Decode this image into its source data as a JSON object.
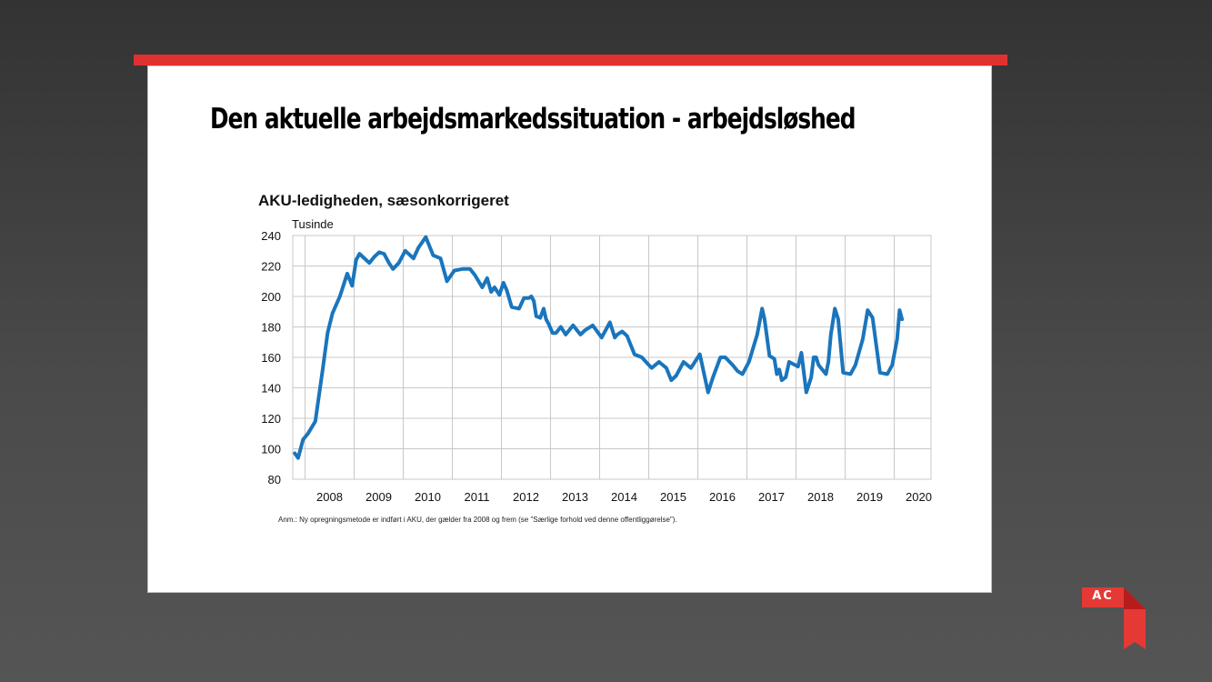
{
  "slide": {
    "title": "Den aktuelle arbejdsmarkedssituation - arbejdsløshed",
    "accent_color": "#e03131"
  },
  "logo": {
    "text": "AC",
    "color": "#e53935"
  },
  "chart_data": {
    "type": "line",
    "title": "AKU-ledigheden, sæsonkorrigeret",
    "ylabel": "Tusinde",
    "xlabel": "",
    "ylim": [
      80,
      240
    ],
    "yticks": [
      80,
      100,
      120,
      140,
      160,
      180,
      200,
      220,
      240
    ],
    "xlim": [
      2007.75,
      2020.75
    ],
    "xticks": [
      "2008",
      "2009",
      "2010",
      "2011",
      "2012",
      "2013",
      "2014",
      "2015",
      "2016",
      "2017",
      "2018",
      "2019",
      "2020"
    ],
    "grid": true,
    "line_color": "#1a75bc",
    "series": [
      {
        "x": [
          2007.79,
          2007.86,
          2007.96,
          2008.06,
          2008.21,
          2008.36,
          2008.46,
          2008.56,
          2008.71,
          2008.86,
          2008.96,
          2009.04,
          2009.11,
          2009.21,
          2009.31,
          2009.41,
          2009.51,
          2009.61,
          2009.71,
          2009.79,
          2009.91,
          2010.04,
          2010.21,
          2010.31,
          2010.46,
          2010.61,
          2010.76,
          2010.89,
          2011.04,
          2011.21,
          2011.36,
          2011.46,
          2011.61,
          2011.71,
          2011.79,
          2011.86,
          2011.96,
          2012.04,
          2012.11,
          2012.21,
          2012.36,
          2012.46,
          2012.56,
          2012.61,
          2012.66,
          2012.71,
          2012.79,
          2012.86,
          2012.91,
          2012.96,
          2013.04,
          2013.11,
          2013.21,
          2013.31,
          2013.46,
          2013.61,
          2013.71,
          2013.86,
          2014.04,
          2014.21,
          2014.31,
          2014.36,
          2014.46,
          2014.56,
          2014.71,
          2014.86,
          2015.06,
          2015.21,
          2015.36,
          2015.46,
          2015.56,
          2015.71,
          2015.86,
          2016.04,
          2016.21,
          2016.31,
          2016.46,
          2016.56,
          2016.71,
          2016.81,
          2016.91,
          2017.04,
          2017.21,
          2017.31,
          2017.36,
          2017.46,
          2017.56,
          2017.61,
          2017.66,
          2017.71,
          2017.79,
          2017.86,
          2018.04,
          2018.11,
          2018.21,
          2018.31,
          2018.36,
          2018.41,
          2018.46,
          2018.56,
          2018.61,
          2018.66,
          2018.71,
          2018.79,
          2018.86,
          2018.96,
          2019.11,
          2019.21,
          2019.36,
          2019.46,
          2019.56,
          2019.71,
          2019.86,
          2019.96,
          2020.06,
          2020.11,
          2020.16
        ],
        "values": [
          97,
          94,
          106,
          110,
          118,
          152,
          176,
          189,
          200,
          215,
          207,
          224,
          228,
          225,
          222,
          226,
          229,
          228,
          222,
          218,
          222,
          230,
          225,
          232,
          239,
          227,
          225,
          210,
          217,
          218,
          218,
          214,
          206,
          212,
          203,
          206,
          201,
          209,
          204,
          193,
          192,
          199,
          199,
          200,
          197,
          187,
          186,
          192,
          185,
          182,
          176,
          176,
          180,
          175,
          181,
          175,
          178,
          181,
          173,
          183,
          173,
          175,
          177,
          174,
          162,
          160,
          153,
          157,
          153,
          145,
          148,
          157,
          153,
          162,
          137,
          147,
          160,
          160,
          155,
          151,
          149,
          157,
          175,
          192,
          185,
          161,
          159,
          149,
          152,
          145,
          147,
          157,
          154,
          163,
          137,
          147,
          160,
          160,
          155,
          151,
          149,
          157,
          175,
          192,
          185,
          150,
          149,
          155,
          172,
          191,
          186,
          150,
          149,
          155,
          172,
          191,
          185
        ]
      }
    ],
    "note": "Anm.: Ny opregningsmetode er indført i AKU, der gælder fra 2008 og frem (se \"Særlige forhold ved denne offentliggørelse\")."
  }
}
